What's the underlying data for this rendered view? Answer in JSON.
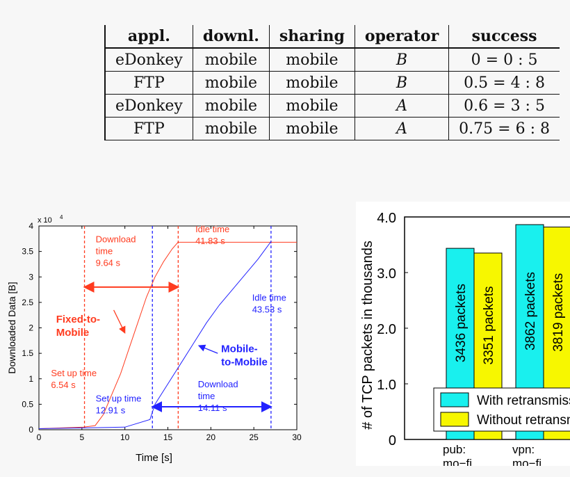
{
  "table": {
    "headers": [
      "appl.",
      "downl.",
      "sharing",
      "operator",
      "success"
    ],
    "rows": [
      [
        "eDonkey",
        "mobile",
        "mobile",
        "B",
        "0 = 0 : 5"
      ],
      [
        "FTP",
        "mobile",
        "mobile",
        "B",
        "0.5 = 4 : 8"
      ],
      [
        "eDonkey",
        "mobile",
        "mobile",
        "A",
        "0.6 = 3 : 5"
      ],
      [
        "FTP",
        "mobile",
        "mobile",
        "A",
        "0.75 = 6 : 8"
      ]
    ]
  },
  "chart_data": [
    {
      "type": "line",
      "xlabel": "Time [s]",
      "ylabel": "Downloaded Data [B]",
      "y_multiplier": "x 10",
      "y_multiplier_exp": "4",
      "xlim": [
        0,
        30
      ],
      "ylim": [
        0,
        4
      ],
      "x_ticks": [
        "0",
        "5",
        "10",
        "15",
        "20",
        "25",
        "30"
      ],
      "y_ticks": [
        "0",
        "0.5",
        "1",
        "1.5",
        "2",
        "2.5",
        "3",
        "3.5",
        "4"
      ],
      "series": [
        {
          "name": "Fixed-to-Mobile",
          "color": "#ff3b1f",
          "x": [
            0,
            5.2,
            6.54,
            7.5,
            8.5,
            9.5,
            10.5,
            11.5,
            12.5,
            13.5,
            14.5,
            15.5,
            16.18,
            30
          ],
          "y": [
            0.02,
            0.05,
            0.08,
            0.3,
            0.7,
            1.1,
            1.6,
            2.1,
            2.6,
            3.0,
            3.3,
            3.55,
            3.68,
            3.68
          ]
        },
        {
          "name": "Mobile-to-Mobile",
          "color": "#2222ff",
          "x": [
            0,
            10,
            12.91,
            13.5,
            15,
            16.5,
            18,
            19.5,
            21,
            22.5,
            24,
            25.5,
            27.02
          ],
          "y": [
            0.02,
            0.05,
            0.2,
            0.5,
            0.9,
            1.3,
            1.7,
            2.1,
            2.45,
            2.75,
            3.05,
            3.35,
            3.7
          ]
        }
      ],
      "vlines": [
        {
          "x": 5.3,
          "color": "#ff3b1f"
        },
        {
          "x": 13.2,
          "color": "#2222ff"
        },
        {
          "x": 16.2,
          "color": "#ff3b1f"
        },
        {
          "x": 27.0,
          "color": "#2222ff"
        }
      ],
      "arrows": [
        {
          "x1": 5.3,
          "x2": 16.2,
          "y": 2.8,
          "color": "#ff3b1f"
        },
        {
          "x1": 13.2,
          "x2": 27.0,
          "y": 0.45,
          "color": "#2222ff"
        }
      ],
      "annotations": [
        {
          "lines": [
            "Download",
            "time",
            "9.64 s"
          ],
          "x": 6.6,
          "y": 3.68,
          "color": "#ff3b1f",
          "bold": false
        },
        {
          "lines": [
            "Idle time",
            "41.83 s"
          ],
          "x": 18.2,
          "y": 3.88,
          "color": "#ff3b1f",
          "bold": false
        },
        {
          "lines": [
            "Idle time",
            "43.53 s"
          ],
          "x": 24.8,
          "y": 2.53,
          "color": "#2222ff",
          "bold": false
        },
        {
          "lines": [
            "Fixed-to-",
            "Mobile"
          ],
          "x": 2.0,
          "y": 2.1,
          "color": "#ff3b1f",
          "bold": true
        },
        {
          "lines": [
            "Mobile-",
            "to-Mobile"
          ],
          "x": 21.2,
          "y": 1.52,
          "color": "#2222ff",
          "bold": true
        },
        {
          "lines": [
            "Set up time",
            "6.54 s"
          ],
          "x": 1.4,
          "y": 1.05,
          "color": "#ff3b1f",
          "bold": false
        },
        {
          "lines": [
            "Download",
            "time",
            "14.11 s"
          ],
          "x": 18.5,
          "y": 0.83,
          "color": "#2222ff",
          "bold": false
        },
        {
          "lines": [
            "Set up time",
            "12.91 s"
          ],
          "x": 6.6,
          "y": 0.55,
          "color": "#2222ff",
          "bold": false
        }
      ],
      "pointer_arrows": [
        {
          "from": [
            8.7,
            2.35
          ],
          "to": [
            10.0,
            1.9
          ],
          "color": "#ff3b1f"
        },
        {
          "from": [
            20.8,
            1.5
          ],
          "to": [
            18.6,
            1.65
          ],
          "color": "#2222ff"
        }
      ]
    },
    {
      "type": "bar",
      "ylabel": "# of TCP packets in thousands",
      "ylim": [
        0,
        4.0
      ],
      "y_ticks": [
        "0",
        "1.0",
        "2.0",
        "3.0",
        "4.0"
      ],
      "categories": [
        "pub: mo−fi",
        "vpn: mo−fi"
      ],
      "category_lines": [
        [
          "pub:",
          "mo−fi"
        ],
        [
          "vpn:",
          "mo−fi"
        ]
      ],
      "series": [
        {
          "name": "With retransmissions",
          "color": "#19f0ee",
          "values": [
            3.436,
            3.862
          ],
          "labels": [
            "3436 packets",
            "3862 packets"
          ]
        },
        {
          "name": "Without retransmissions",
          "color": "#f7f700",
          "values": [
            3.351,
            3.819
          ],
          "labels": [
            "3351 packets",
            "3819 packets"
          ]
        }
      ]
    }
  ]
}
